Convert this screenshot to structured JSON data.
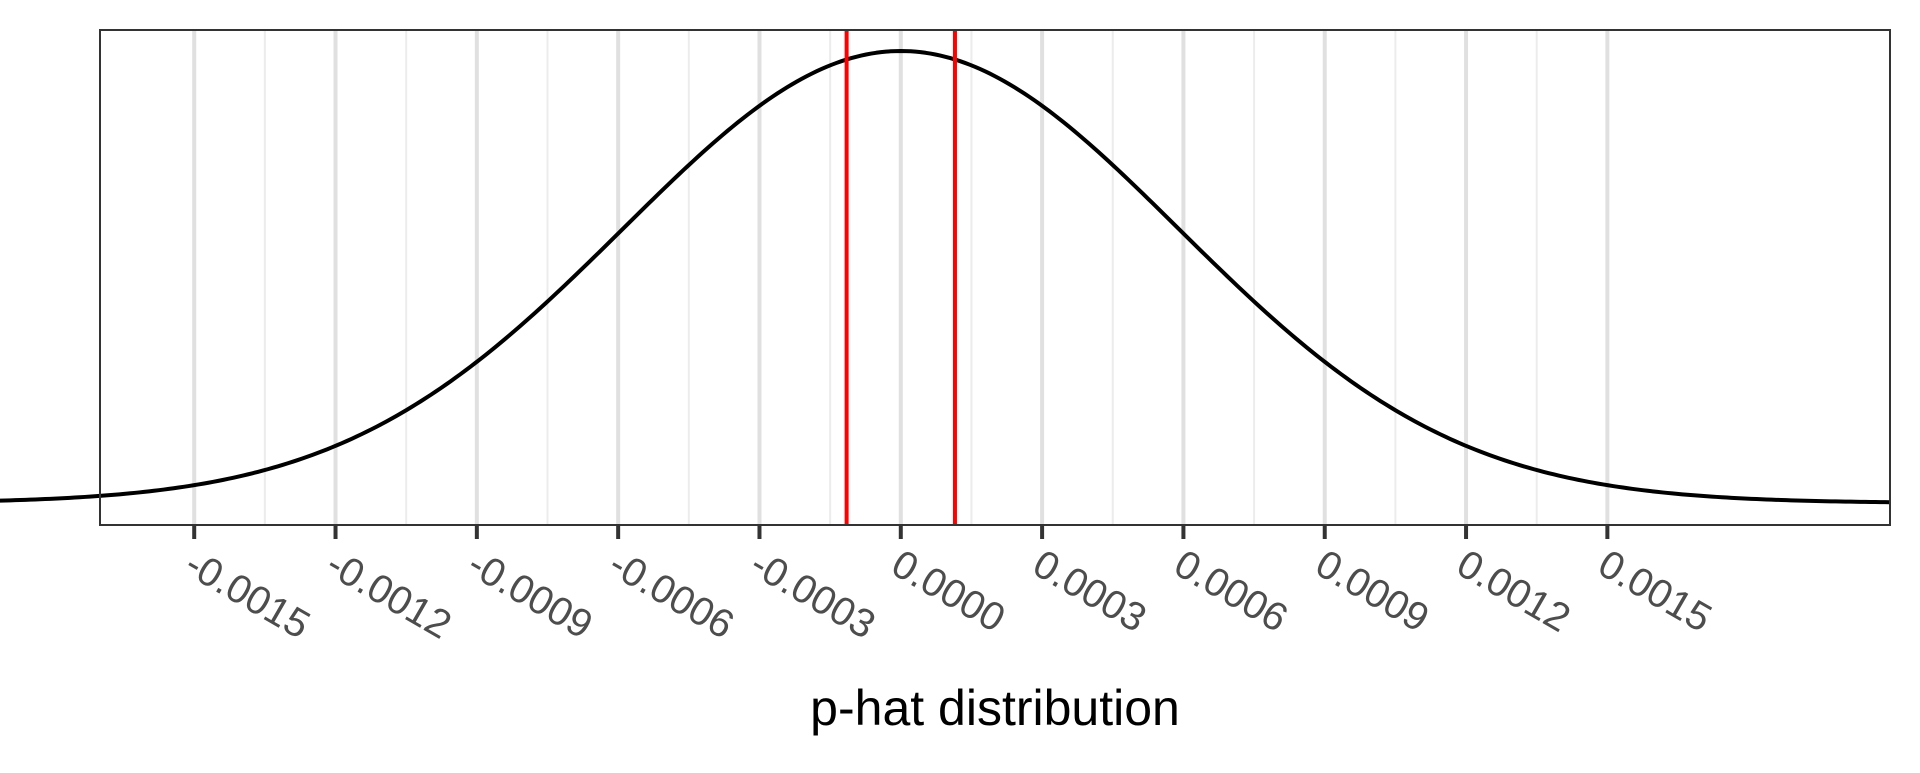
{
  "chart_data": {
    "type": "line",
    "title": "",
    "xlabel": "p-hat distribution",
    "ylabel": "",
    "xlim": [
      -0.0017,
      0.0021
    ],
    "ylim": [
      0,
      1
    ],
    "grid": true,
    "x_ticks": [
      -0.0015,
      -0.0012,
      -0.0009,
      -0.0006,
      -0.0003,
      0.0,
      0.0003,
      0.0006,
      0.0009,
      0.0012,
      0.0015
    ],
    "x_tick_labels": [
      "-0.0015",
      "-0.0012",
      "-0.0009",
      "-0.0006",
      "-0.0003",
      "0.0000",
      "0.0003",
      "0.0006",
      "0.0009",
      "0.0012",
      "0.0015"
    ],
    "minor_grid_x": [
      -0.00135,
      -0.00105,
      -0.00075,
      -0.00045,
      -0.00015,
      0.00015,
      0.00045,
      0.00075,
      0.00105,
      0.00135
    ],
    "curve": {
      "distribution": "normal",
      "mean": 0.0,
      "sd": 0.00059,
      "x_range": [
        -0.0021,
        0.0021
      ],
      "color": "#000000"
    },
    "reference_lines": [
      {
        "x": -0.000115,
        "color": "#ff0000"
      },
      {
        "x": 0.000115,
        "color": "#ff0000"
      }
    ],
    "colors": {
      "panel_border": "#333333",
      "grid_major": "#e0e0e0",
      "grid_minor": "#ececec",
      "tick_mark": "#333333"
    }
  }
}
